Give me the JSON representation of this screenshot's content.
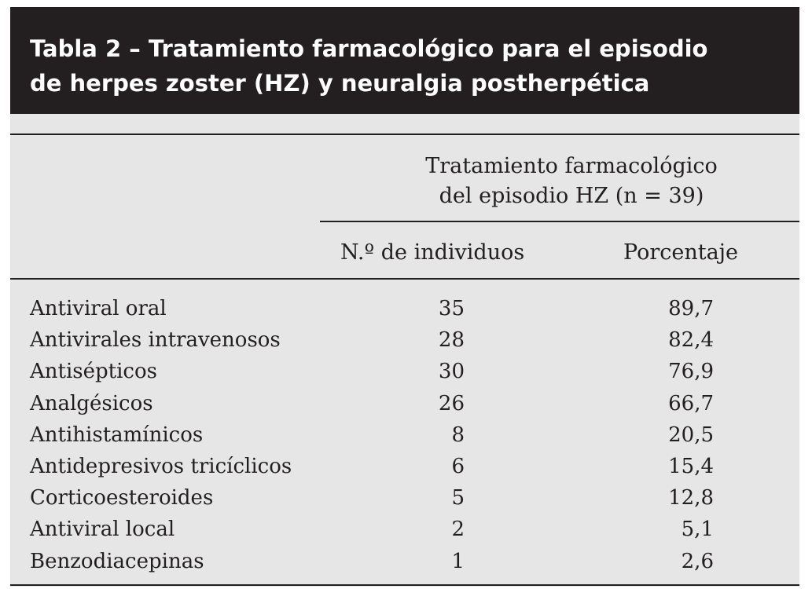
{
  "table": {
    "title_line1": "Tabla 2 – Tratamiento farmacológico para el episodio",
    "title_line2": "de herpes zoster (HZ) y neuralgia postherpética",
    "group_header_line1": "Tratamiento farmacológico",
    "group_header_line2": "del episodio HZ (n = 39)",
    "col_count": "N.º de individuos",
    "col_percent": "Porcentaje",
    "rows": [
      {
        "name": "Antiviral oral",
        "count": "35",
        "percent": "89,7"
      },
      {
        "name": "Antivirales intravenosos",
        "count": "28",
        "percent": "82,4"
      },
      {
        "name": "Antisépticos",
        "count": "30",
        "percent": "76,9"
      },
      {
        "name": "Analgésicos",
        "count": "26",
        "percent": "66,7"
      },
      {
        "name": "Antihistamínicos",
        "count": "8",
        "percent": "20,5"
      },
      {
        "name": "Antidepresivos tricíclicos",
        "count": "6",
        "percent": "15,4"
      },
      {
        "name": "Corticoesteroides",
        "count": "5",
        "percent": "12,8"
      },
      {
        "name": "Antiviral local",
        "count": "2",
        "percent": "5,1"
      },
      {
        "name": "Benzodiacepinas",
        "count": "1",
        "percent": "2,6"
      }
    ]
  }
}
